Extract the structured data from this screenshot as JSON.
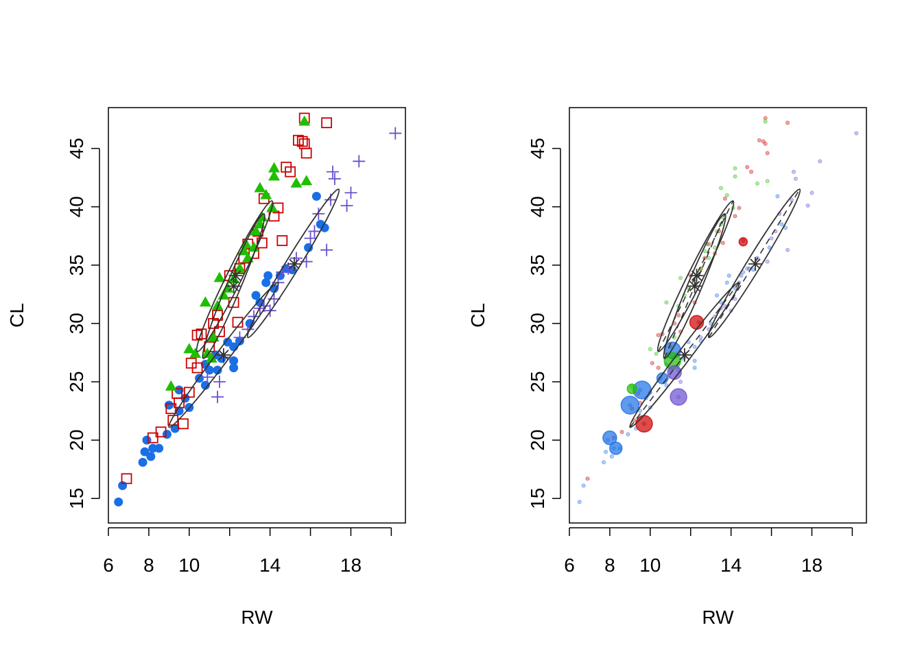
{
  "chart_data": [
    {
      "type": "scatter",
      "panel": "left",
      "xlabel": "RW",
      "ylabel": "CL",
      "xlim": [
        6,
        20.7
      ],
      "ylim": [
        12.9,
        48.5
      ],
      "x_ticks": [
        6,
        8,
        10,
        12,
        14,
        16,
        18,
        20
      ],
      "x_tick_labels": [
        "6",
        "8",
        "10",
        "",
        "14",
        "",
        "18",
        ""
      ],
      "y_ticks": [
        15,
        20,
        25,
        30,
        35,
        40,
        45
      ],
      "y_tick_labels": [
        "15",
        "20",
        "25",
        "30",
        "35",
        "40",
        "45"
      ],
      "grid": false
    },
    {
      "type": "scatter",
      "panel": "right",
      "xlabel": "RW",
      "ylabel": "CL",
      "xlim": [
        6,
        20.7
      ],
      "ylim": [
        12.9,
        48.5
      ],
      "x_ticks": [
        6,
        8,
        10,
        12,
        14,
        16,
        18,
        20
      ],
      "x_tick_labels": [
        "6",
        "8",
        "10",
        "",
        "14",
        "",
        "18",
        ""
      ],
      "y_ticks": [
        15,
        20,
        25,
        30,
        35,
        40,
        45
      ],
      "y_tick_labels": [
        "15",
        "20",
        "25",
        "30",
        "35",
        "40",
        "45"
      ],
      "grid": false
    }
  ],
  "groups": [
    {
      "name": "blue",
      "color": "#1a6fe6",
      "marker": "circle",
      "points": [
        [
          6.5,
          14.7
        ],
        [
          6.7,
          16.1
        ],
        [
          7.7,
          18.1
        ],
        [
          7.8,
          19.0
        ],
        [
          8.1,
          18.6
        ],
        [
          7.9,
          20.0
        ],
        [
          8.2,
          19.3
        ],
        [
          8.5,
          19.3
        ],
        [
          8.9,
          20.5
        ],
        [
          9.0,
          23.0
        ],
        [
          9.3,
          21.0
        ],
        [
          9.5,
          22.5
        ],
        [
          9.8,
          23.6
        ],
        [
          10.0,
          22.8
        ],
        [
          9.5,
          24.3
        ],
        [
          10.5,
          25.3
        ],
        [
          10.8,
          24.7
        ],
        [
          11.0,
          26.0
        ],
        [
          11.4,
          26.0
        ],
        [
          11.9,
          28.4
        ],
        [
          12.2,
          26.2
        ],
        [
          12.2,
          26.8
        ],
        [
          12.2,
          28.0
        ],
        [
          12.5,
          28.5
        ],
        [
          13.0,
          30.0
        ],
        [
          13.3,
          32.4
        ],
        [
          13.5,
          31.8
        ],
        [
          13.8,
          33.5
        ],
        [
          13.9,
          34.1
        ],
        [
          14.2,
          33.0
        ],
        [
          14.5,
          34.1
        ],
        [
          14.8,
          34.7
        ],
        [
          15.1,
          34.6
        ],
        [
          15.9,
          36.5
        ],
        [
          16.3,
          40.9
        ],
        [
          16.5,
          38.5
        ],
        [
          16.7,
          38.2
        ],
        [
          10.8,
          26.5
        ],
        [
          11.3,
          27.3
        ],
        [
          11.6,
          27.0
        ]
      ]
    },
    {
      "name": "red",
      "color": "#cc0000",
      "marker": "square",
      "points": [
        [
          6.9,
          16.7
        ],
        [
          8.2,
          20.2
        ],
        [
          8.6,
          20.7
        ],
        [
          9.1,
          22.7
        ],
        [
          9.2,
          21.7
        ],
        [
          9.5,
          23.2
        ],
        [
          9.4,
          24.0
        ],
        [
          9.7,
          21.4
        ],
        [
          10.0,
          24.1
        ],
        [
          10.1,
          26.6
        ],
        [
          10.4,
          26.2
        ],
        [
          10.4,
          29.0
        ],
        [
          10.6,
          29.1
        ],
        [
          11.0,
          28.0
        ],
        [
          11.2,
          30.0
        ],
        [
          11.4,
          30.7
        ],
        [
          11.5,
          29.3
        ],
        [
          12.2,
          31.8
        ],
        [
          12.0,
          34.1
        ],
        [
          12.4,
          30.1
        ],
        [
          12.5,
          34.7
        ],
        [
          12.7,
          35.6
        ],
        [
          12.9,
          36.8
        ],
        [
          13.2,
          36.0
        ],
        [
          13.4,
          37.9
        ],
        [
          13.6,
          36.9
        ],
        [
          13.7,
          40.7
        ],
        [
          14.2,
          39.2
        ],
        [
          14.4,
          39.9
        ],
        [
          14.6,
          37.1
        ],
        [
          14.8,
          43.4
        ],
        [
          15.0,
          43.0
        ],
        [
          15.4,
          45.7
        ],
        [
          15.6,
          45.6
        ],
        [
          15.8,
          44.6
        ],
        [
          15.7,
          47.6
        ],
        [
          16.8,
          47.2
        ],
        [
          15.7,
          45.4
        ]
      ]
    },
    {
      "name": "green",
      "color": "#1fbf00",
      "marker": "triangle",
      "points": [
        [
          9.1,
          24.6
        ],
        [
          10.0,
          27.8
        ],
        [
          10.3,
          27.4
        ],
        [
          10.8,
          31.8
        ],
        [
          10.9,
          27.4
        ],
        [
          11.2,
          28.8
        ],
        [
          11.4,
          31.5
        ],
        [
          11.5,
          33.9
        ],
        [
          11.7,
          32.4
        ],
        [
          11.9,
          33.0
        ],
        [
          12.2,
          33.8
        ],
        [
          12.5,
          34.7
        ],
        [
          12.7,
          36.2
        ],
        [
          12.8,
          36.8
        ],
        [
          12.9,
          35.6
        ],
        [
          13.2,
          36.5
        ],
        [
          13.3,
          37.9
        ],
        [
          13.5,
          38.5
        ],
        [
          13.6,
          39.1
        ],
        [
          13.5,
          41.6
        ],
        [
          13.8,
          41.0
        ],
        [
          14.2,
          43.3
        ],
        [
          14.2,
          42.6
        ],
        [
          14.1,
          39.9
        ],
        [
          15.3,
          42.0
        ],
        [
          15.8,
          42.2
        ],
        [
          15.7,
          47.3
        ],
        [
          11.1,
          27.0
        ]
      ]
    },
    {
      "name": "purple",
      "color": "#6a4fd0",
      "marker": "plus",
      "points": [
        [
          11.4,
          23.7
        ],
        [
          11.5,
          25.0
        ],
        [
          10.9,
          25.4
        ],
        [
          11.7,
          27.1
        ],
        [
          12.5,
          28.8
        ],
        [
          12.9,
          29.5
        ],
        [
          13.2,
          30.6
        ],
        [
          13.5,
          31.3
        ],
        [
          13.7,
          31.5
        ],
        [
          14.0,
          31.1
        ],
        [
          14.2,
          32.1
        ],
        [
          14.4,
          33.5
        ],
        [
          14.6,
          34.4
        ],
        [
          14.9,
          34.7
        ],
        [
          15.3,
          35.6
        ],
        [
          15.8,
          35.3
        ],
        [
          16.0,
          37.3
        ],
        [
          16.2,
          37.9
        ],
        [
          16.4,
          39.4
        ],
        [
          16.8,
          36.3
        ],
        [
          17.1,
          43.0
        ],
        [
          17.2,
          42.4
        ],
        [
          17.0,
          40.6
        ],
        [
          17.8,
          40.1
        ],
        [
          18.0,
          41.2
        ],
        [
          18.4,
          43.9
        ],
        [
          20.2,
          46.3
        ]
      ]
    }
  ],
  "ellipses": [
    {
      "group": "red",
      "center": [
        12.3,
        34.1
      ],
      "major_end_a": [
        10.4,
        27.6
      ],
      "major_end_b": [
        14.1,
        40.5
      ],
      "minor_ratio": 0.09
    },
    {
      "group": "green",
      "center": [
        12.2,
        33.2
      ],
      "major_end_a": [
        10.7,
        27.0
      ],
      "major_end_b": [
        13.7,
        39.4
      ],
      "minor_ratio": 0.09
    },
    {
      "group": "blue",
      "center": [
        11.7,
        27.3
      ],
      "major_end_a": [
        9.0,
        21.1
      ],
      "major_end_b": [
        14.4,
        33.5
      ],
      "minor_ratio": 0.07
    },
    {
      "group": "purple",
      "center": [
        15.2,
        35.1
      ],
      "major_end_a": [
        12.9,
        28.8
      ],
      "major_end_b": [
        17.4,
        41.5
      ],
      "minor_ratio": 0.08
    }
  ],
  "influential_points": [
    {
      "group": "blue",
      "x": 9.6,
      "y": 24.3,
      "size": 13
    },
    {
      "group": "blue",
      "x": 9.0,
      "y": 23.0,
      "size": 13
    },
    {
      "group": "blue",
      "x": 8.0,
      "y": 20.2,
      "size": 10
    },
    {
      "group": "blue",
      "x": 8.3,
      "y": 19.3,
      "size": 9
    },
    {
      "group": "blue",
      "x": 11.1,
      "y": 27.7,
      "size": 12
    },
    {
      "group": "blue",
      "x": 10.6,
      "y": 25.3,
      "size": 8
    },
    {
      "group": "red",
      "x": 9.7,
      "y": 21.4,
      "size": 12
    },
    {
      "group": "red",
      "x": 12.3,
      "y": 30.1,
      "size": 10
    },
    {
      "group": "red",
      "x": 14.6,
      "y": 37.0,
      "size": 6
    },
    {
      "group": "green",
      "x": 11.1,
      "y": 26.8,
      "size": 12
    },
    {
      "group": "green",
      "x": 9.1,
      "y": 24.4,
      "size": 7
    },
    {
      "group": "purple",
      "x": 11.4,
      "y": 23.7,
      "size": 12
    },
    {
      "group": "purple",
      "x": 11.2,
      "y": 25.8,
      "size": 10
    }
  ]
}
